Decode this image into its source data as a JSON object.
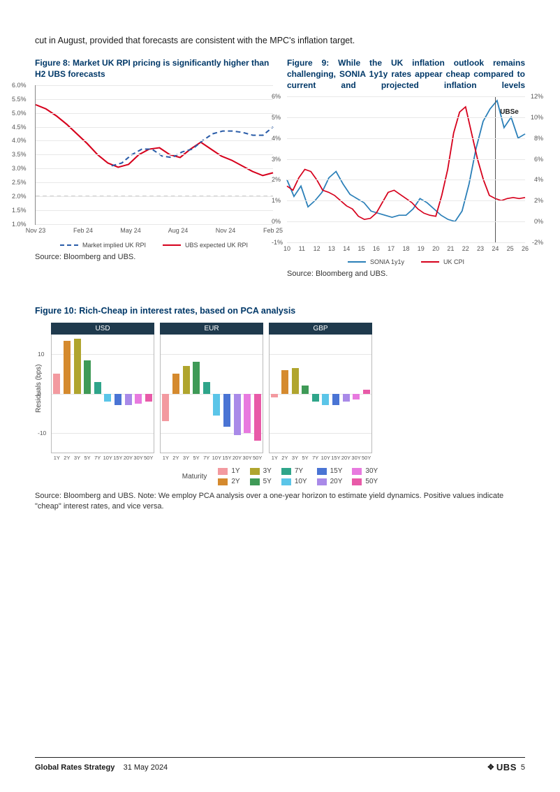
{
  "intro": "cut in August, provided that forecasts are consistent with the MPC's inflation target.",
  "figure8": {
    "title": "Figure 8: Market UK RPI pricing is significantly higher than H2 UBS forecasts",
    "type": "line",
    "ylim": [
      1.0,
      6.0
    ],
    "ytick_step": 0.5,
    "ytick_suffix": "%",
    "x_categories": [
      "Nov 23",
      "Feb 24",
      "May 24",
      "Aug 24",
      "Nov 24",
      "Feb 25"
    ],
    "grid_color": "#e8e8e8",
    "axis_color": "#888888",
    "background_color": "#ffffff",
    "label_fontsize": 9,
    "series": {
      "target_line": {
        "value": 2.0,
        "color": "#9e9e9e",
        "dash": true,
        "width": 1.5
      },
      "market_implied": {
        "label": "Market implied UK RPI",
        "color": "#2a5ca8",
        "dash": true,
        "width": 2,
        "x_start_frac": 0.32,
        "points": [
          3.1,
          3.2,
          3.5,
          3.7,
          3.7,
          3.45,
          3.4,
          3.6,
          3.7,
          4.0,
          4.25,
          4.35,
          4.35,
          4.3,
          4.2,
          4.2,
          4.5
        ]
      },
      "ubs_expected": {
        "label": "UBS expected UK RPI",
        "color": "#d6001c",
        "dash": false,
        "width": 2,
        "points": [
          5.3,
          5.15,
          4.9,
          4.6,
          4.25,
          3.9,
          3.5,
          3.2,
          3.05,
          3.15,
          3.5,
          3.7,
          3.75,
          3.5,
          3.4,
          3.7,
          3.95,
          3.7,
          3.45,
          3.3,
          3.1,
          2.9,
          2.75,
          2.85
        ]
      }
    },
    "source": "Source: Bloomberg and UBS."
  },
  "figure9": {
    "title": "Figure 9: While the UK inflation outlook remains challenging, SONIA 1y1y rates appear cheap compared to current and projected inflation levels",
    "type": "line_dual_axis",
    "ylim_left": [
      -1,
      6
    ],
    "ytick_left_step": 1,
    "ytick_suffix": "%",
    "ylim_right": [
      -2,
      12
    ],
    "ytick_right_step": 2,
    "x_categories": [
      "10",
      "11",
      "12",
      "13",
      "14",
      "15",
      "16",
      "17",
      "18",
      "19",
      "20",
      "21",
      "22",
      "23",
      "24",
      "25",
      "26"
    ],
    "grid_color": "#e8e8e8",
    "axis_color": "#888888",
    "background_color": "#ffffff",
    "vline_at_index": 14,
    "vline_color": "#555555",
    "ubse_label": "UBSe",
    "series": {
      "sonia": {
        "label": "SONIA 1y1y",
        "color": "#2a7fb8",
        "axis": "left",
        "width": 1.6,
        "points": [
          2.0,
          1.2,
          1.7,
          0.7,
          1.0,
          1.4,
          2.1,
          2.4,
          1.8,
          1.3,
          1.1,
          0.9,
          0.5,
          0.4,
          0.3,
          0.2,
          0.3,
          0.3,
          0.6,
          1.1,
          0.9,
          0.6,
          0.3,
          0.1,
          0.0,
          0.5,
          1.8,
          3.5,
          4.8,
          5.4,
          5.8,
          4.5,
          5.0,
          4.0,
          4.2
        ]
      },
      "ukcpi": {
        "label": "UK CPI",
        "color": "#d6001c",
        "axis": "right",
        "width": 1.6,
        "points": [
          3.4,
          3.0,
          4.2,
          5.0,
          4.8,
          4.0,
          3.0,
          2.8,
          2.5,
          2.0,
          1.5,
          1.2,
          0.5,
          0.2,
          0.3,
          0.8,
          1.8,
          2.8,
          3.0,
          2.6,
          2.2,
          1.8,
          1.2,
          0.8,
          0.6,
          0.5,
          2.5,
          5.0,
          8.5,
          10.5,
          11.0,
          8.5,
          6.0,
          4.0,
          2.5,
          2.2,
          2.0,
          2.2,
          2.3,
          2.2,
          2.3
        ]
      }
    },
    "source": "Source: Bloomberg and UBS."
  },
  "figure10": {
    "title": "Figure 10: Rich-Cheap in interest rates, based on PCA analysis",
    "type": "bar_panels",
    "ylabel": "Residuals (bps)",
    "ylim": [
      -15,
      15
    ],
    "yticks": [
      -10,
      0,
      10
    ],
    "maturities": [
      "1Y",
      "2Y",
      "3Y",
      "5Y",
      "7Y",
      "10Y",
      "15Y",
      "20Y",
      "30Y",
      "50Y"
    ],
    "colors": {
      "1Y": "#f39aa0",
      "2Y": "#d58a2e",
      "3Y": "#b0a52e",
      "5Y": "#3f9a57",
      "7Y": "#2fa58a",
      "10Y": "#5bc5e8",
      "15Y": "#4a74d4",
      "20Y": "#a98ae8",
      "30Y": "#e87adf",
      "50Y": "#e85aa8"
    },
    "panel_header_bg": "#1f3a4d",
    "panel_header_color": "#ffffff",
    "panel_border": "#bbbbbb",
    "grid_color": "#e6e6e6",
    "panels": [
      {
        "name": "USD",
        "values": [
          5,
          13.5,
          14,
          8.5,
          3,
          -2,
          -3,
          -3,
          -2.5,
          -2
        ]
      },
      {
        "name": "EUR",
        "values": [
          -7,
          5,
          7,
          8,
          3,
          -5.5,
          -8.5,
          -10.5,
          -10,
          -12
        ]
      },
      {
        "name": "GBP",
        "values": [
          -1,
          6,
          6.5,
          2,
          -2,
          -3,
          -3,
          -2,
          -1.5,
          1
        ]
      }
    ],
    "legend_label": "Maturity",
    "source": "Source: Bloomberg and UBS. Note: We employ PCA analysis over a one-year horizon to estimate yield dynamics. Positive values indicate \"cheap\" interest rates, and vice versa."
  },
  "footer": {
    "title": "Global Rates Strategy",
    "date": "31 May 2024",
    "brand": "UBS",
    "page": "5"
  }
}
